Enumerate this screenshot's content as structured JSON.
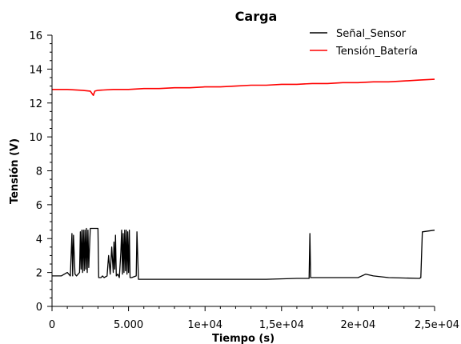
{
  "chart_data": {
    "type": "line",
    "title": "Carga",
    "xlabel": "Tiempo (s)",
    "ylabel": "Tensión (V)",
    "xlim": [
      0,
      25000
    ],
    "ylim": [
      0,
      16
    ],
    "x_ticks": [
      0,
      5000,
      10000,
      15000,
      20000,
      25000
    ],
    "x_tick_labels": [
      "0",
      "5.000",
      "1e+04",
      "1,5e+04",
      "2e+04",
      "2,5e+04"
    ],
    "y_ticks": [
      0,
      2,
      4,
      6,
      8,
      10,
      12,
      14,
      16
    ],
    "y_tick_labels": [
      "0",
      "2",
      "4",
      "6",
      "8",
      "10",
      "12",
      "14",
      "16"
    ],
    "grid": false,
    "legend_position": "top-right",
    "colors": {
      "Señal_Sensor": "#000000",
      "Tensión_Batería": "#ff0000"
    },
    "series": [
      {
        "name": "Señal_Sensor",
        "x": [
          0,
          600,
          1000,
          1200,
          1300,
          1350,
          1400,
          1500,
          1600,
          1800,
          1850,
          1900,
          1950,
          2000,
          2050,
          2100,
          2150,
          2200,
          2250,
          2300,
          2350,
          2400,
          2500,
          2700,
          3000,
          3050,
          3200,
          3300,
          3400,
          3600,
          3700,
          3800,
          3900,
          4000,
          4050,
          4100,
          4150,
          4200,
          4300,
          4400,
          4500,
          4550,
          4600,
          4650,
          4700,
          4750,
          4800,
          4850,
          4900,
          4950,
          5000,
          5050,
          5100,
          5200,
          5500,
          5550,
          5650,
          5700,
          6000,
          8000,
          10000,
          12000,
          14000,
          16000,
          16800,
          16850,
          16900,
          18000,
          20000,
          20500,
          21000,
          22000,
          24000,
          24100,
          24200,
          25000
        ],
        "y": [
          1.8,
          1.8,
          2.0,
          1.8,
          4.3,
          1.8,
          4.2,
          1.9,
          1.8,
          2.0,
          4.4,
          2.2,
          4.5,
          2.0,
          4.5,
          2.1,
          4.5,
          2.2,
          4.6,
          2.0,
          4.5,
          2.3,
          4.6,
          4.6,
          4.6,
          1.7,
          1.7,
          1.8,
          1.7,
          1.8,
          3.0,
          1.9,
          3.5,
          2.0,
          3.8,
          2.2,
          4.2,
          1.8,
          1.9,
          1.7,
          3.2,
          4.5,
          1.9,
          4.3,
          2.0,
          4.5,
          2.1,
          4.5,
          1.9,
          4.4,
          2.0,
          4.5,
          1.7,
          1.7,
          1.8,
          4.4,
          1.6,
          1.6,
          1.6,
          1.6,
          1.6,
          1.6,
          1.6,
          1.65,
          1.65,
          4.3,
          1.7,
          1.7,
          1.7,
          1.9,
          1.8,
          1.7,
          1.65,
          1.7,
          4.4,
          4.5
        ]
      },
      {
        "name": "Tensión_Batería",
        "x": [
          0,
          1000,
          2000,
          2500,
          2700,
          2800,
          3000,
          4000,
          5000,
          6000,
          7000,
          8000,
          9000,
          10000,
          11000,
          12000,
          13000,
          14000,
          15000,
          16000,
          17000,
          18000,
          19000,
          20000,
          21000,
          22000,
          23000,
          24000,
          25000
        ],
        "y": [
          12.8,
          12.8,
          12.75,
          12.7,
          12.45,
          12.7,
          12.75,
          12.8,
          12.8,
          12.85,
          12.85,
          12.9,
          12.9,
          12.95,
          12.95,
          13.0,
          13.05,
          13.05,
          13.1,
          13.1,
          13.15,
          13.15,
          13.2,
          13.2,
          13.25,
          13.25,
          13.3,
          13.35,
          13.4
        ]
      }
    ]
  }
}
